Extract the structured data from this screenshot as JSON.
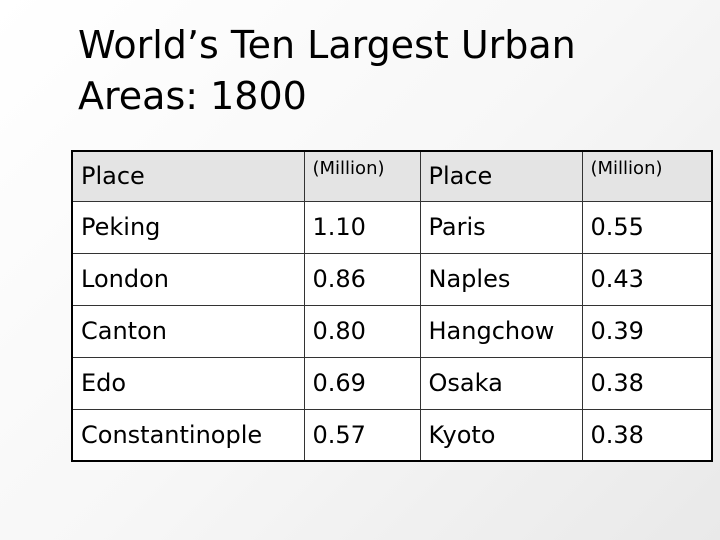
{
  "slide": {
    "title_line1": "World’s Ten Largest Urban",
    "title_line2": "Areas: 1800"
  },
  "table": {
    "headers": [
      "Place",
      "(Million)",
      "Place",
      "(Million)"
    ],
    "rows": [
      [
        "Peking",
        "1.10",
        "Paris",
        "0.55"
      ],
      [
        "London",
        "0.86",
        "Naples",
        "0.43"
      ],
      [
        "Canton",
        "0.80",
        "Hangchow",
        "0.39"
      ],
      [
        "Edo",
        "0.69",
        "Osaka",
        "0.38"
      ],
      [
        "Constantinople",
        "0.57",
        "Kyoto",
        "0.38"
      ]
    ]
  }
}
